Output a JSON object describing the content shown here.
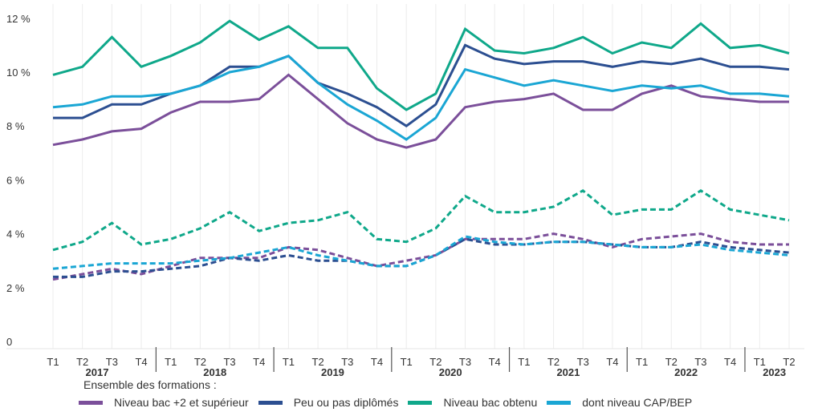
{
  "chart_data": {
    "type": "line",
    "title": "",
    "xlabel": "",
    "ylabel": "",
    "ylim": [
      0,
      12
    ],
    "yticks": [
      {
        "value": 0,
        "label": "0"
      },
      {
        "value": 2,
        "label": "2 %"
      },
      {
        "value": 4,
        "label": "4 %"
      },
      {
        "value": 6,
        "label": "6 %"
      },
      {
        "value": 8,
        "label": "8 %"
      },
      {
        "value": 10,
        "label": "10 %"
      },
      {
        "value": 12,
        "label": "12 %"
      }
    ],
    "grid": "vertical",
    "years": [
      {
        "label": "2017",
        "quarters": [
          "T1",
          "T2",
          "T3",
          "T4"
        ]
      },
      {
        "label": "2018",
        "quarters": [
          "T1",
          "T2",
          "T3",
          "T4"
        ]
      },
      {
        "label": "2019",
        "quarters": [
          "T1",
          "T2",
          "T3",
          "T4"
        ]
      },
      {
        "label": "2020",
        "quarters": [
          "T1",
          "T2",
          "T3",
          "T4"
        ]
      },
      {
        "label": "2021",
        "quarters": [
          "T1",
          "T2",
          "T3",
          "T4"
        ]
      },
      {
        "label": "2022",
        "quarters": [
          "T1",
          "T2",
          "T3",
          "T4"
        ]
      },
      {
        "label": "2023",
        "quarters": [
          "T1",
          "T2"
        ]
      }
    ],
    "legend_position": "bottom",
    "legend_title": "Ensemble des formations :",
    "series": [
      {
        "name": "Niveau bac +2 et supérieur",
        "color": "#7b4f9a",
        "style": "solid",
        "values": [
          7.3,
          7.5,
          7.8,
          7.9,
          8.5,
          8.9,
          8.9,
          9.0,
          9.9,
          9.0,
          8.1,
          7.5,
          7.2,
          7.5,
          8.7,
          8.9,
          9.0,
          9.2,
          8.6,
          8.6,
          9.2,
          9.5,
          9.1,
          9.0,
          8.9,
          8.9
        ]
      },
      {
        "name": "Peu ou pas diplômés",
        "color": "#2c4f91",
        "style": "solid",
        "values": [
          8.3,
          8.3,
          8.8,
          8.8,
          9.2,
          9.5,
          10.2,
          10.2,
          10.6,
          9.6,
          9.2,
          8.7,
          8.0,
          8.8,
          11.0,
          10.5,
          10.3,
          10.4,
          10.4,
          10.2,
          10.4,
          10.3,
          10.5,
          10.2,
          10.2,
          10.1
        ]
      },
      {
        "name": "Niveau bac obtenu",
        "color": "#0fa88a",
        "style": "solid",
        "values": [
          9.9,
          10.2,
          11.3,
          10.2,
          10.6,
          11.1,
          11.9,
          11.2,
          11.7,
          10.9,
          10.9,
          9.4,
          8.6,
          9.2,
          11.6,
          10.8,
          10.7,
          10.9,
          11.3,
          10.7,
          11.1,
          10.9,
          11.8,
          10.9,
          11.0,
          10.7
        ]
      },
      {
        "name": "dont niveau CAP/BEP",
        "color": "#1aa6d4",
        "style": "solid",
        "values": [
          8.7,
          8.8,
          9.1,
          9.1,
          9.2,
          9.5,
          10.0,
          10.2,
          10.6,
          9.6,
          8.8,
          8.2,
          7.5,
          8.3,
          10.1,
          9.8,
          9.5,
          9.7,
          9.5,
          9.3,
          9.5,
          9.4,
          9.5,
          9.2,
          9.2,
          9.1
        ]
      },
      {
        "name": "Niveau bac +2 et supérieur (pointillés)",
        "color": "#7b4f9a",
        "style": "dashed",
        "values": [
          2.3,
          2.5,
          2.7,
          2.5,
          2.8,
          3.1,
          3.1,
          3.1,
          3.5,
          3.4,
          3.1,
          2.8,
          3.0,
          3.2,
          3.8,
          3.8,
          3.8,
          4.0,
          3.8,
          3.5,
          3.8,
          3.9,
          4.0,
          3.7,
          3.6,
          3.6
        ]
      },
      {
        "name": "Peu ou pas diplômés (pointillés)",
        "color": "#2c4f91",
        "style": "dashed",
        "values": [
          2.4,
          2.4,
          2.6,
          2.6,
          2.7,
          2.8,
          3.1,
          3.0,
          3.2,
          3.0,
          3.0,
          2.8,
          2.8,
          3.2,
          3.8,
          3.6,
          3.6,
          3.7,
          3.7,
          3.6,
          3.5,
          3.5,
          3.7,
          3.5,
          3.4,
          3.3
        ]
      },
      {
        "name": "Niveau bac obtenu (pointillés)",
        "color": "#0fa88a",
        "style": "dashed",
        "values": [
          3.4,
          3.7,
          4.4,
          3.6,
          3.8,
          4.2,
          4.8,
          4.1,
          4.4,
          4.5,
          4.8,
          3.8,
          3.7,
          4.2,
          5.4,
          4.8,
          4.8,
          5.0,
          5.6,
          4.7,
          4.9,
          4.9,
          5.6,
          4.9,
          4.7,
          4.5
        ]
      },
      {
        "name": "dont niveau CAP/BEP (pointillés)",
        "color": "#1aa6d4",
        "style": "dashed",
        "values": [
          2.7,
          2.8,
          2.9,
          2.9,
          2.9,
          3.0,
          3.1,
          3.3,
          3.5,
          3.2,
          3.0,
          2.8,
          2.8,
          3.2,
          3.9,
          3.7,
          3.6,
          3.7,
          3.7,
          3.6,
          3.5,
          3.5,
          3.6,
          3.4,
          3.3,
          3.2
        ]
      }
    ]
  },
  "legend": {
    "title": "Ensemble des formations :",
    "items": [
      {
        "label": "Niveau bac +2 et supérieur",
        "color": "#7b4f9a"
      },
      {
        "label": "Peu ou pas diplômés",
        "color": "#2c4f91"
      },
      {
        "label": "Niveau bac obtenu",
        "color": "#0fa88a"
      },
      {
        "label": "dont niveau CAP/BEP",
        "color": "#1aa6d4"
      }
    ]
  }
}
